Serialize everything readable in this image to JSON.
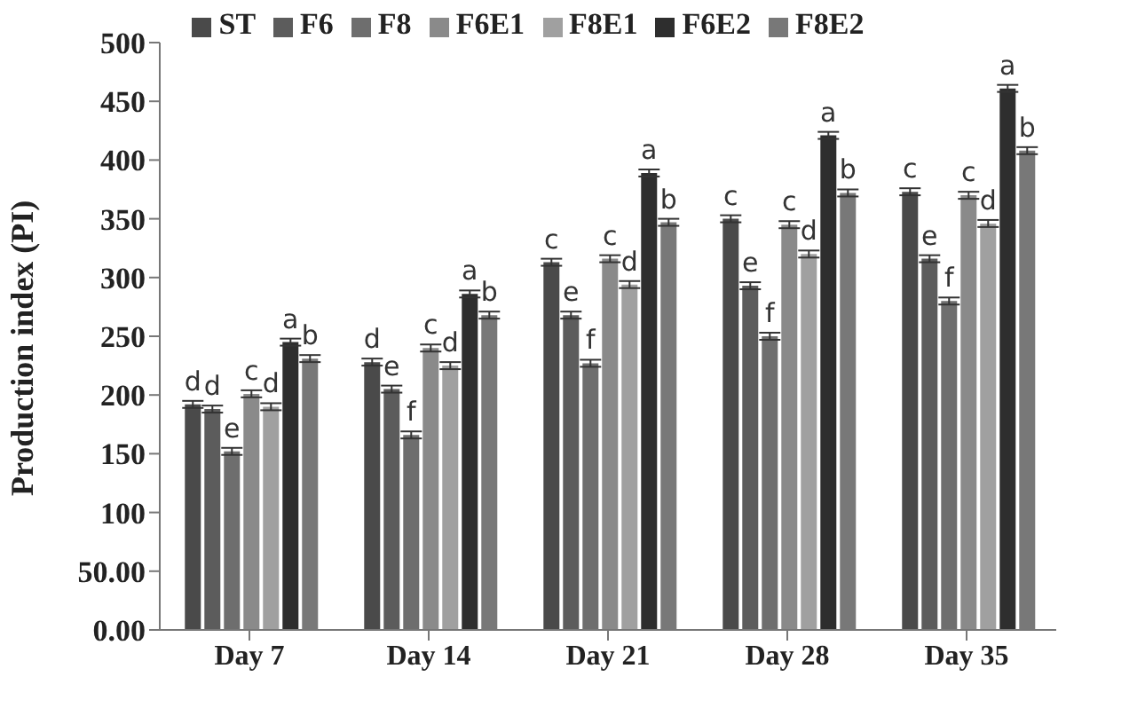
{
  "chart_data": {
    "type": "bar",
    "ylabel": "Production index (PI)",
    "categories": [
      "Day 7",
      "Day 14",
      "Day 21",
      "Day 28",
      "Day 35"
    ],
    "series": [
      {
        "name": "ST",
        "color": "#4a4a4a",
        "values": [
          192,
          228,
          313,
          350,
          373
        ],
        "errors": [
          3,
          3,
          3,
          3,
          3
        ],
        "value_labels": [
          "d",
          "d",
          "c",
          "c",
          "c"
        ]
      },
      {
        "name": "F6",
        "color": "#5c5c5c",
        "values": [
          188,
          205,
          268,
          293,
          316
        ],
        "errors": [
          3,
          3,
          3,
          3,
          3
        ],
        "value_labels": [
          "d",
          "e",
          "e",
          "e",
          "e"
        ]
      },
      {
        "name": "F8",
        "color": "#6e6e6e",
        "values": [
          152,
          166,
          227,
          250,
          280
        ],
        "errors": [
          3,
          3,
          3,
          3,
          3
        ],
        "value_labels": [
          "e",
          "f",
          "f",
          "f",
          "f"
        ]
      },
      {
        "name": "F6E1",
        "color": "#8a8a8a",
        "values": [
          201,
          240,
          316,
          345,
          370
        ],
        "errors": [
          3,
          3,
          3,
          3,
          3
        ],
        "value_labels": [
          "c",
          "c",
          "c",
          "c",
          "c"
        ]
      },
      {
        "name": "F8E1",
        "color": "#a0a0a0",
        "values": [
          190,
          225,
          294,
          320,
          346
        ],
        "errors": [
          3,
          3,
          3,
          3,
          3
        ],
        "value_labels": [
          "d",
          "d",
          "d",
          "d",
          "d"
        ]
      },
      {
        "name": "F6E2",
        "color": "#2e2e2e",
        "values": [
          245,
          286,
          389,
          421,
          461
        ],
        "errors": [
          3,
          3,
          3,
          3,
          3
        ],
        "value_labels": [
          "a",
          "a",
          "a",
          "a",
          "a"
        ]
      },
      {
        "name": "F8E2",
        "color": "#787878",
        "values": [
          231,
          268,
          347,
          372,
          408
        ],
        "errors": [
          3,
          3,
          3,
          3,
          3
        ],
        "value_labels": [
          "b",
          "b",
          "b",
          "b",
          "b"
        ]
      }
    ],
    "ylim": [
      0,
      500
    ],
    "yticks": [
      {
        "value": 0,
        "label": "0.00"
      },
      {
        "value": 50,
        "label": "50.00"
      },
      100,
      150,
      200,
      250,
      300,
      350,
      400,
      450,
      500
    ],
    "grid": false,
    "legend": "top"
  }
}
